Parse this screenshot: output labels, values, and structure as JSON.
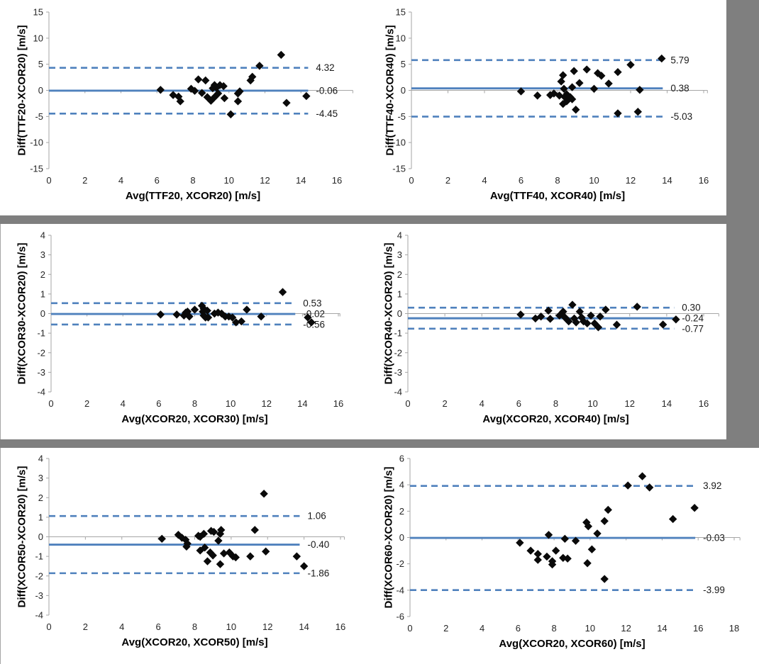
{
  "colors": {
    "accent_blue": "#4F81BD",
    "marker_black": "#0a0a0a",
    "axis_gray": "#a6a6a6",
    "separator_gray": "#7f7f7f",
    "panel_white": "#ffffff"
  },
  "chart_data": [
    {
      "type": "scatter",
      "ylabel": "Diff(TTF20-XCOR20) [m/s]",
      "xlabel": "Avg(TTF20, XCOR20) [m/s]",
      "xlim": [
        0,
        16
      ],
      "ylim": [
        -15,
        15
      ],
      "xticks": [
        0,
        2,
        4,
        6,
        8,
        10,
        12,
        14,
        16
      ],
      "yticks": [
        15,
        10,
        5,
        0,
        -5,
        -10,
        -15
      ],
      "lines": {
        "upper": {
          "value": 4.32,
          "label": "4.32"
        },
        "mean": {
          "value": -0.06,
          "label": "-0.06"
        },
        "lower": {
          "value": -4.45,
          "label": "-4.45"
        }
      },
      "points": [
        [
          6.2,
          0.1
        ],
        [
          6.9,
          -0.9
        ],
        [
          7.2,
          -1.2
        ],
        [
          7.3,
          -2.1
        ],
        [
          7.9,
          0.3
        ],
        [
          8.1,
          -0.1
        ],
        [
          8.3,
          2.1
        ],
        [
          8.5,
          -0.5
        ],
        [
          8.7,
          1.9
        ],
        [
          8.8,
          -1.3
        ],
        [
          9.0,
          -2.0
        ],
        [
          9.1,
          0.4
        ],
        [
          9.2,
          -1.3
        ],
        [
          9.2,
          1.0
        ],
        [
          9.3,
          0.5
        ],
        [
          9.4,
          -0.6
        ],
        [
          9.5,
          1.0
        ],
        [
          9.7,
          0.8
        ],
        [
          9.75,
          -1.5
        ],
        [
          10.1,
          -4.6
        ],
        [
          10.5,
          -0.6
        ],
        [
          10.5,
          -2.1
        ],
        [
          10.6,
          -0.2
        ],
        [
          11.2,
          1.9
        ],
        [
          11.3,
          2.6
        ],
        [
          11.7,
          4.7
        ],
        [
          12.9,
          6.8
        ],
        [
          13.2,
          -2.4
        ],
        [
          14.3,
          -1.1
        ]
      ]
    },
    {
      "type": "scatter",
      "ylabel": "Diff(TTF40-XCOR40) [m/s]",
      "xlabel": "Avg(TTF40, XCOR40) [m/s]",
      "xlim": [
        0,
        16
      ],
      "ylim": [
        -15,
        15
      ],
      "xticks": [
        0,
        2,
        4,
        6,
        8,
        10,
        12,
        14,
        16
      ],
      "yticks": [
        15,
        10,
        5,
        0,
        -5,
        -10,
        -15
      ],
      "lines": {
        "upper": {
          "value": 5.79,
          "label": "5.79"
        },
        "mean": {
          "value": 0.38,
          "label": "0.38"
        },
        "lower": {
          "value": -5.03,
          "label": "-5.03"
        }
      },
      "points": [
        [
          6.0,
          -0.2
        ],
        [
          6.9,
          -1.0
        ],
        [
          7.6,
          -0.9
        ],
        [
          7.8,
          -0.6
        ],
        [
          8.1,
          -1.0
        ],
        [
          8.2,
          1.7
        ],
        [
          8.3,
          2.9
        ],
        [
          8.3,
          -2.6
        ],
        [
          8.35,
          0.3
        ],
        [
          8.4,
          -1.3
        ],
        [
          8.5,
          -0.75
        ],
        [
          8.5,
          -2.1
        ],
        [
          8.7,
          -1.3
        ],
        [
          8.8,
          0.6
        ],
        [
          8.8,
          -1.7
        ],
        [
          8.9,
          3.7
        ],
        [
          9.0,
          -3.7
        ],
        [
          9.2,
          1.4
        ],
        [
          9.6,
          4.0
        ],
        [
          10.0,
          0.3
        ],
        [
          10.2,
          3.3
        ],
        [
          10.4,
          2.8
        ],
        [
          10.8,
          1.3
        ],
        [
          11.3,
          3.5
        ],
        [
          11.3,
          -4.4
        ],
        [
          12.0,
          4.9
        ],
        [
          12.4,
          -4.1
        ],
        [
          12.5,
          0.1
        ],
        [
          13.7,
          6.1
        ]
      ]
    },
    {
      "type": "scatter",
      "ylabel": "Diff(XCOR30-XCOR20) [m/s]",
      "xlabel": "Avg(XCOR20, XCOR30) [m/s]",
      "xlim": [
        0,
        16
      ],
      "ylim": [
        -4,
        4
      ],
      "xticks": [
        0,
        2,
        4,
        6,
        8,
        10,
        12,
        14,
        16
      ],
      "yticks": [
        4,
        3,
        2,
        1,
        0,
        -1,
        -2,
        -3,
        -4
      ],
      "lines": {
        "upper": {
          "value": 0.53,
          "label": "0.53"
        },
        "mean": {
          "value": -0.02,
          "label": "-0.02"
        },
        "lower": {
          "value": -0.56,
          "label": "-0.56"
        }
      },
      "points": [
        [
          6.1,
          -0.05
        ],
        [
          7.0,
          -0.05
        ],
        [
          7.4,
          -0.1
        ],
        [
          7.5,
          0.05
        ],
        [
          7.6,
          0.1
        ],
        [
          7.7,
          -0.15
        ],
        [
          8.0,
          0.2
        ],
        [
          8.4,
          0.4
        ],
        [
          8.45,
          0.1
        ],
        [
          8.5,
          0.25
        ],
        [
          8.5,
          -0.1
        ],
        [
          8.6,
          -0.2
        ],
        [
          8.7,
          0.15
        ],
        [
          8.75,
          -0.2
        ],
        [
          9.1,
          0.0
        ],
        [
          9.3,
          0.05
        ],
        [
          9.5,
          0.0
        ],
        [
          9.7,
          -0.15
        ],
        [
          9.9,
          -0.15
        ],
        [
          10.1,
          -0.2
        ],
        [
          10.3,
          -0.45
        ],
        [
          10.6,
          -0.4
        ],
        [
          10.9,
          0.2
        ],
        [
          11.7,
          -0.15
        ],
        [
          12.9,
          1.1
        ],
        [
          14.3,
          -0.2
        ],
        [
          14.5,
          -0.45
        ]
      ]
    },
    {
      "type": "scatter",
      "ylabel": "Diff(XCOR40-XCOR20) [m/s]",
      "xlabel": "Avg(XCOR20, XCOR40) [m/s]",
      "xlim": [
        0,
        16
      ],
      "ylim": [
        -4,
        4
      ],
      "xticks": [
        0,
        2,
        4,
        6,
        8,
        10,
        12,
        14,
        16
      ],
      "yticks": [
        4,
        3,
        2,
        1,
        0,
        -1,
        -2,
        -3,
        -4
      ],
      "lines": {
        "upper": {
          "value": 0.3,
          "label": "0.30"
        },
        "mean": {
          "value": -0.24,
          "label": "-0.24"
        },
        "lower": {
          "value": -0.77,
          "label": "-0.77"
        }
      },
      "points": [
        [
          6.1,
          -0.05
        ],
        [
          6.9,
          -0.25
        ],
        [
          7.2,
          -0.15
        ],
        [
          7.6,
          0.15
        ],
        [
          7.7,
          -0.27
        ],
        [
          8.2,
          -0.1
        ],
        [
          8.4,
          0.1
        ],
        [
          8.5,
          -0.2
        ],
        [
          8.6,
          -0.3
        ],
        [
          8.7,
          -0.4
        ],
        [
          8.9,
          0.45
        ],
        [
          9.0,
          -0.25
        ],
        [
          9.1,
          -0.45
        ],
        [
          9.3,
          0.1
        ],
        [
          9.4,
          -0.2
        ],
        [
          9.5,
          -0.4
        ],
        [
          9.7,
          -0.5
        ],
        [
          9.9,
          -0.1
        ],
        [
          10.1,
          -0.5
        ],
        [
          10.3,
          -0.7
        ],
        [
          10.4,
          -0.15
        ],
        [
          10.7,
          0.2
        ],
        [
          11.3,
          -0.57
        ],
        [
          12.4,
          0.35
        ],
        [
          13.8,
          -0.56
        ],
        [
          14.5,
          -0.3
        ]
      ]
    },
    {
      "type": "scatter",
      "ylabel": "Diff(XCOR50-XCOR20) [m/s]",
      "xlabel": "Avg(XCOR20, XCOR50) [m/s]",
      "xlim": [
        0,
        16
      ],
      "ylim": [
        -4,
        4
      ],
      "xticks": [
        0,
        2,
        4,
        6,
        8,
        10,
        12,
        14,
        16
      ],
      "yticks": [
        4,
        3,
        2,
        1,
        0,
        -1,
        -2,
        -3,
        -4
      ],
      "lines": {
        "upper": {
          "value": 1.06,
          "label": "1.06"
        },
        "mean": {
          "value": -0.4,
          "label": "-0.40"
        },
        "lower": {
          "value": -1.86,
          "label": "-1.86"
        }
      },
      "points": [
        [
          6.2,
          -0.1
        ],
        [
          7.1,
          0.1
        ],
        [
          7.3,
          -0.05
        ],
        [
          7.5,
          -0.15
        ],
        [
          7.55,
          -0.5
        ],
        [
          7.6,
          -0.35
        ],
        [
          8.2,
          0.05
        ],
        [
          8.3,
          0.0
        ],
        [
          8.3,
          -0.7
        ],
        [
          8.5,
          0.15
        ],
        [
          8.55,
          -0.55
        ],
        [
          8.7,
          -1.25
        ],
        [
          8.85,
          -0.8
        ],
        [
          8.9,
          0.3
        ],
        [
          9.0,
          -0.95
        ],
        [
          9.05,
          0.25
        ],
        [
          9.3,
          -0.2
        ],
        [
          9.4,
          0.15
        ],
        [
          9.45,
          0.35
        ],
        [
          9.4,
          -1.4
        ],
        [
          9.6,
          -0.85
        ],
        [
          9.9,
          -0.8
        ],
        [
          10.1,
          -1.0
        ],
        [
          10.25,
          -1.05
        ],
        [
          11.05,
          -1.0
        ],
        [
          11.3,
          0.35
        ],
        [
          11.8,
          2.2
        ],
        [
          11.9,
          -0.75
        ],
        [
          13.6,
          -1.0
        ],
        [
          14.0,
          -1.5
        ]
      ]
    },
    {
      "type": "scatter",
      "ylabel": "Diff(XCOR60-XCOR20) [m/s]",
      "xlabel": "Avg(XCOR20, XCOR60) [m/s]",
      "xlim": [
        0,
        18
      ],
      "ylim": [
        -6,
        6
      ],
      "xticks": [
        0,
        2,
        4,
        6,
        8,
        10,
        12,
        14,
        16,
        18
      ],
      "yticks": [
        6,
        4,
        2,
        0,
        -2,
        -4,
        -6
      ],
      "lines": {
        "upper": {
          "value": 3.92,
          "label": "3.92"
        },
        "mean": {
          "value": -0.03,
          "label": "-0.03"
        },
        "lower": {
          "value": -3.99,
          "label": "-3.99"
        }
      },
      "points": [
        [
          6.1,
          -0.4
        ],
        [
          6.7,
          -1.0
        ],
        [
          7.1,
          -1.25
        ],
        [
          7.1,
          -1.7
        ],
        [
          7.6,
          -1.45
        ],
        [
          7.7,
          0.2
        ],
        [
          7.9,
          -1.8
        ],
        [
          7.9,
          -2.05
        ],
        [
          8.1,
          -1.0
        ],
        [
          8.5,
          -1.55
        ],
        [
          8.6,
          -0.1
        ],
        [
          8.75,
          -1.6
        ],
        [
          9.2,
          -0.25
        ],
        [
          9.8,
          1.15
        ],
        [
          9.9,
          0.85
        ],
        [
          9.85,
          -1.95
        ],
        [
          10.1,
          -0.9
        ],
        [
          10.4,
          0.3
        ],
        [
          10.8,
          1.25
        ],
        [
          10.8,
          -3.15
        ],
        [
          11.0,
          2.1
        ],
        [
          12.1,
          3.95
        ],
        [
          12.9,
          4.65
        ],
        [
          13.3,
          3.8
        ],
        [
          14.6,
          1.4
        ],
        [
          15.8,
          2.25
        ]
      ]
    }
  ]
}
